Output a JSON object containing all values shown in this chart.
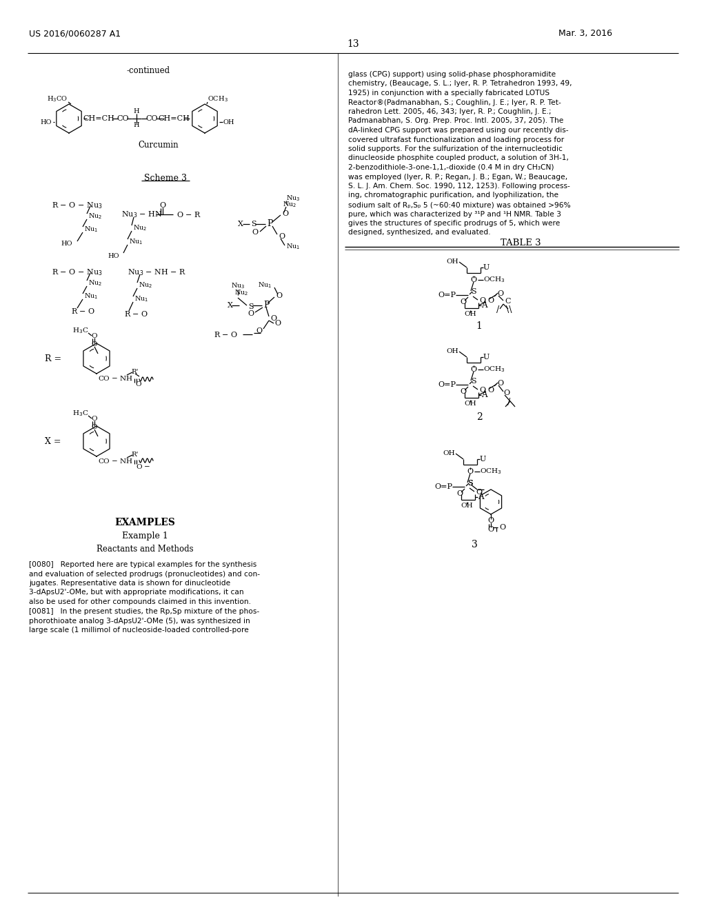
{
  "page_number": "13",
  "patent_number": "US 2016/0060287 A1",
  "patent_date": "Mar. 3, 2016",
  "background_color": "#ffffff",
  "continued_label": "-continued",
  "scheme_label": "Scheme 3",
  "table3_label": "TABLE 3",
  "examples_header": "EXAMPLES",
  "example1_header": "Example 1",
  "example1_sub": "Reactants and Methods",
  "right_text_lines": [
    "glass (CPG) support) using solid-phase phosphoramidite",
    "chemistry, (Beaucage, S. L.; Iyer, R. P. Tetrahedron 1993, 49,",
    "1925) in conjunction with a specially fabricated LOTUS",
    "Reactor®(Padmanabhan, S.; Coughlin, J. E.; Iyer, R. P. Tet-",
    "rahedron Lett. 2005, 46, 343; Iyer, R. P.; Coughlin, J. E.;",
    "Padmanabhan, S. Org. Prep. Proc. Intl. 2005, 37, 205). The",
    "dA-linked CPG support was prepared using our recently dis-",
    "covered ultrafast functionalization and loading process for",
    "solid supports. For the sulfurization of the internucleotidic",
    "dinucleoside phosphite coupled product, a solution of 3H-1,",
    "2-benzodithiole-3-one-1,1,-dioxide (0.4 M in dry CH₃CN)",
    "was employed (Iyer, R. P.; Regan, J. B.; Egan, W.; Beaucage,",
    "S. L. J. Am. Chem. Soc. 1990, 112, 1253). Following process-",
    "ing, chromatographic purification, and lyophilization, the",
    "sodium salt of Rₚ,Sₚ 5 (~60:40 mixture) was obtained >96%",
    "pure, which was characterized by ³¹P and ¹H NMR. Table 3",
    "gives the structures of specific prodrugs of 5, which were",
    "designed, synthesized, and evaluated."
  ],
  "para0080_lines": [
    "[0080]   Reported here are typical examples for the synthesis",
    "and evaluation of selected prodrugs (pronucleotides) and con-",
    "jugates. Representative data is shown for dinucleotide",
    "3-dApsU2'-OMe, but with appropriate modifications, it can",
    "also be used for other compounds claimed in this invention."
  ],
  "para0081_lines": [
    "[0081]   In the present studies, the Rp,Sp mixture of the phos-",
    "phorothioate analog 3-dApsU2'-OMe (5), was synthesized in",
    "large scale (1 millimol of nucleoside-loaded controlled-pore"
  ]
}
